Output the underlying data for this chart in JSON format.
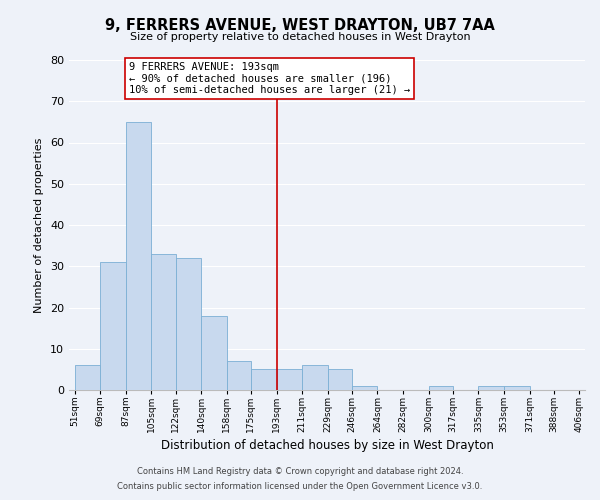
{
  "title": "9, FERRERS AVENUE, WEST DRAYTON, UB7 7AA",
  "subtitle": "Size of property relative to detached houses in West Drayton",
  "xlabel": "Distribution of detached houses by size in West Drayton",
  "ylabel": "Number of detached properties",
  "bar_values": [
    6,
    31,
    65,
    33,
    32,
    18,
    7,
    5,
    5,
    6,
    5,
    1,
    0,
    0,
    1,
    0,
    1,
    1,
    0,
    0
  ],
  "bin_edges": [
    51,
    69,
    87,
    105,
    122,
    140,
    158,
    175,
    193,
    211,
    229,
    246,
    264,
    282,
    300,
    317,
    335,
    353,
    371,
    388,
    406
  ],
  "bar_labels": [
    "51sqm",
    "69sqm",
    "87sqm",
    "105sqm",
    "122sqm",
    "140sqm",
    "158sqm",
    "175sqm",
    "193sqm",
    "211sqm",
    "229sqm",
    "246sqm",
    "264sqm",
    "282sqm",
    "300sqm",
    "317sqm",
    "335sqm",
    "353sqm",
    "371sqm",
    "388sqm",
    "406sqm"
  ],
  "bar_color": "#c8d9ee",
  "bar_edge_color": "#7bafd4",
  "vline_x": 193,
  "vline_color": "#cc0000",
  "annotation_line1": "9 FERRERS AVENUE: 193sqm",
  "annotation_line2": "← 90% of detached houses are smaller (196)",
  "annotation_line3": "10% of semi-detached houses are larger (21) →",
  "ylim": [
    0,
    80
  ],
  "yticks": [
    0,
    10,
    20,
    30,
    40,
    50,
    60,
    70,
    80
  ],
  "background_color": "#eef2f9",
  "grid_color": "#ffffff",
  "footer_line1": "Contains HM Land Registry data © Crown copyright and database right 2024.",
  "footer_line2": "Contains public sector information licensed under the Open Government Licence v3.0."
}
